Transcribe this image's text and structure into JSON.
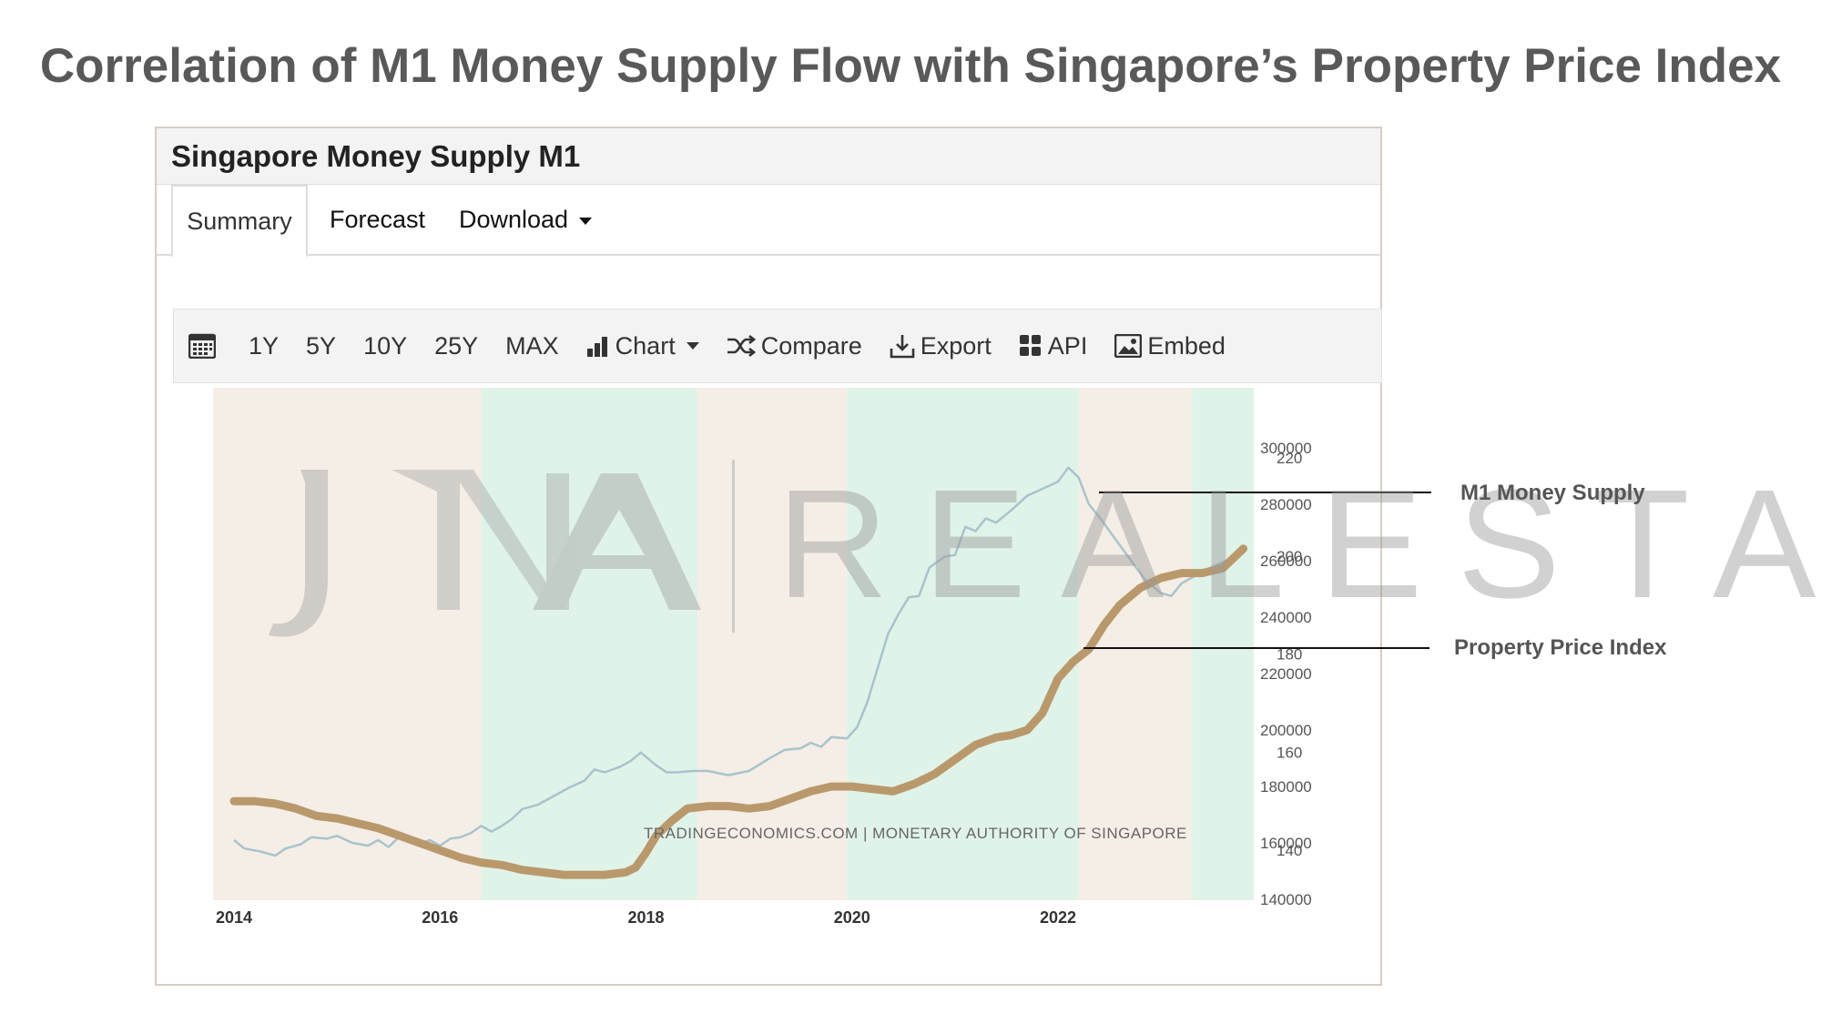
{
  "slide": {
    "title": "Correlation of M1 Money Supply Flow with Singapore’s Property Price Index"
  },
  "widget": {
    "title": "Singapore Money Supply M1",
    "tabs": [
      {
        "label": "Summary",
        "active": true
      },
      {
        "label": "Forecast",
        "active": false
      },
      {
        "label": "Download",
        "active": false
      }
    ],
    "toolbar": {
      "calendar_icon": "calendar-icon",
      "ranges": [
        "1Y",
        "5Y",
        "10Y",
        "25Y",
        "MAX"
      ],
      "chart_label": "Chart",
      "compare_label": "Compare",
      "export_label": "Export",
      "api_label": "API",
      "embed_label": "Embed"
    },
    "source": "TRADINGECONOMICS.COM | MONETARY AUTHORITY OF SINGAPORE"
  },
  "watermark": {
    "text": "REALESTATE"
  },
  "callouts": {
    "m1": "M1 Money Supply",
    "ppi": "Property Price Index"
  },
  "chart_data": {
    "type": "line",
    "x_ticks": [
      "2014",
      "2016",
      "2018",
      "2020",
      "2022"
    ],
    "x_range": [
      "2013-10",
      "2023-12"
    ],
    "y_left": {
      "range": [
        140000,
        300000
      ],
      "ticks": [
        "140000",
        "160000",
        "180000",
        "200000",
        "220000",
        "240000",
        "260000",
        "280000",
        "300000"
      ]
    },
    "y_right": {
      "range": [
        130,
        220
      ],
      "ticks": [
        "140",
        "160",
        "180",
        "200",
        "220"
      ]
    },
    "shaded_bands": [
      {
        "from": "2013.8",
        "to": "2016.4",
        "color": "#f5eee6"
      },
      {
        "from": "2016.4",
        "to": "2018.5",
        "color": "#e0f3e9"
      },
      {
        "from": "2018.5",
        "to": "2019.95",
        "color": "#f5eee6"
      },
      {
        "from": "2019.95",
        "to": "2022.2",
        "color": "#e0f3e9"
      },
      {
        "from": "2022.2",
        "to": "2023.3",
        "color": "#f5eee6"
      },
      {
        "from": "2023.3",
        "to": "2023.9",
        "color": "#e0f3e9"
      }
    ],
    "series": [
      {
        "axis": "left",
        "color": "#a9c3cc",
        "x": [
          2014.0,
          2014.1,
          2014.25,
          2014.4,
          2014.5,
          2014.65,
          2014.75,
          2014.9,
          2015.0,
          2015.15,
          2015.3,
          2015.4,
          2015.5,
          2015.6,
          2015.7,
          2015.8,
          2015.9,
          2016.0,
          2016.1,
          2016.2,
          2016.3,
          2016.4,
          2016.5,
          2016.6,
          2016.7,
          2016.8,
          2016.95,
          2017.1,
          2017.25,
          2017.4,
          2017.5,
          2017.6,
          2017.75,
          2017.85,
          2017.95,
          2018.1,
          2018.2,
          2018.3,
          2018.45,
          2018.6,
          2018.8,
          2019.0,
          2019.2,
          2019.35,
          2019.5,
          2019.6,
          2019.7,
          2019.8,
          2019.95,
          2020.05,
          2020.15,
          2020.25,
          2020.35,
          2020.45,
          2020.55,
          2020.65,
          2020.75,
          2020.9,
          2021.0,
          2021.1,
          2021.2,
          2021.3,
          2021.4,
          2021.55,
          2021.7,
          2021.85,
          2022.0,
          2022.1,
          2022.2,
          2022.3,
          2022.4,
          2022.55,
          2022.7,
          2022.85,
          2023.0,
          2023.1,
          2023.2,
          2023.3,
          2023.45,
          2023.6,
          2023.8
        ],
        "values": [
          161000,
          158000,
          157000,
          155500,
          158000,
          159500,
          162000,
          161500,
          162500,
          160000,
          159000,
          161000,
          158500,
          162000,
          160500,
          159500,
          161000,
          159000,
          161500,
          162000,
          163500,
          166000,
          164000,
          166000,
          168500,
          172000,
          173500,
          176500,
          179500,
          182000,
          186000,
          185000,
          187000,
          189000,
          192000,
          187500,
          185000,
          185000,
          185500,
          185500,
          184000,
          185500,
          190000,
          193000,
          193500,
          195500,
          194000,
          197500,
          197000,
          201000,
          210000,
          222000,
          234000,
          241000,
          247000,
          247500,
          257500,
          261500,
          262000,
          272000,
          270500,
          275000,
          273500,
          278000,
          283000,
          285500,
          288000,
          293000,
          289500,
          280000,
          275500,
          268000,
          260500,
          253000,
          248500,
          247500,
          252000,
          254000,
          257000,
          259500,
          263000
        ]
      },
      {
        "axis": "right",
        "color": "#b9996c",
        "x": [
          2014.0,
          2014.2,
          2014.4,
          2014.6,
          2014.8,
          2015.0,
          2015.2,
          2015.4,
          2015.6,
          2015.8,
          2016.0,
          2016.2,
          2016.4,
          2016.6,
          2016.8,
          2017.0,
          2017.2,
          2017.4,
          2017.6,
          2017.8,
          2017.9,
          2018.0,
          2018.1,
          2018.25,
          2018.4,
          2018.6,
          2018.8,
          2019.0,
          2019.2,
          2019.4,
          2019.6,
          2019.8,
          2020.0,
          2020.2,
          2020.4,
          2020.6,
          2020.8,
          2021.0,
          2021.2,
          2021.4,
          2021.55,
          2021.7,
          2021.85,
          2022.0,
          2022.15,
          2022.3,
          2022.45,
          2022.6,
          2022.8,
          2023.0,
          2023.2,
          2023.4,
          2023.6,
          2023.7,
          2023.8
        ],
        "values": [
          150,
          150,
          149.5,
          148.5,
          147,
          146.5,
          145.5,
          144.5,
          143,
          141.5,
          140,
          138.5,
          137.5,
          137,
          136,
          135.5,
          135,
          135,
          135,
          135.5,
          136.5,
          139.5,
          143,
          146,
          148.5,
          149,
          149,
          148.5,
          149,
          150.5,
          152,
          153,
          153,
          152.5,
          152,
          153.5,
          155.5,
          158.5,
          161.5,
          163,
          163.5,
          164.5,
          168,
          175,
          178.5,
          181,
          186,
          190,
          193.5,
          195.5,
          196.5,
          196.5,
          197.5,
          199.5,
          201.5
        ]
      }
    ]
  }
}
